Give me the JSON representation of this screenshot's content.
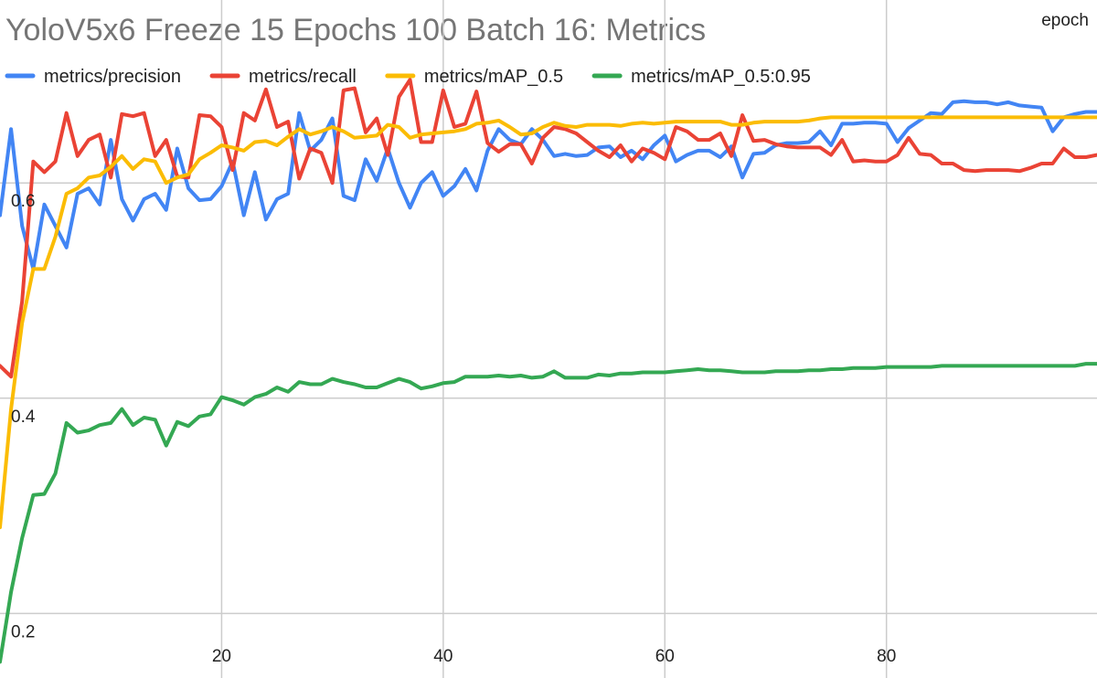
{
  "chart_data": {
    "type": "line",
    "title": "YoloV5x6 Freeze 15 Epochs 100 Batch 16: Metrics",
    "xlabel": "epoch",
    "ylabel": "",
    "xlim": [
      0,
      99
    ],
    "ylim": [
      0.14,
      0.77
    ],
    "xticks": [
      20,
      40,
      60,
      80
    ],
    "yticks": [
      0.2,
      0.4,
      0.6
    ],
    "grid": true,
    "legend_position": "top-left",
    "x": [
      0,
      1,
      2,
      3,
      4,
      5,
      6,
      7,
      8,
      9,
      10,
      11,
      12,
      13,
      14,
      15,
      16,
      17,
      18,
      19,
      20,
      21,
      22,
      23,
      24,
      25,
      26,
      27,
      28,
      29,
      30,
      31,
      32,
      33,
      34,
      35,
      36,
      37,
      38,
      39,
      40,
      41,
      42,
      43,
      44,
      45,
      46,
      47,
      48,
      49,
      50,
      51,
      52,
      53,
      54,
      55,
      56,
      57,
      58,
      59,
      60,
      61,
      62,
      63,
      64,
      65,
      66,
      67,
      68,
      69,
      70,
      71,
      72,
      73,
      74,
      75,
      76,
      77,
      78,
      79,
      80,
      81,
      82,
      83,
      84,
      85,
      86,
      87,
      88,
      89,
      90,
      91,
      92,
      93,
      94,
      95,
      96,
      97,
      98,
      99
    ],
    "series": [
      {
        "name": "metrics/precision",
        "color": "#4285f4",
        "values": [
          0.57,
          0.65,
          0.56,
          0.52,
          0.58,
          0.56,
          0.54,
          0.59,
          0.595,
          0.58,
          0.64,
          0.585,
          0.565,
          0.585,
          0.59,
          0.575,
          0.632,
          0.595,
          0.584,
          0.585,
          0.597,
          0.62,
          0.57,
          0.61,
          0.566,
          0.585,
          0.59,
          0.665,
          0.63,
          0.64,
          0.66,
          0.588,
          0.584,
          0.622,
          0.602,
          0.632,
          0.6,
          0.577,
          0.6,
          0.61,
          0.588,
          0.597,
          0.613,
          0.593,
          0.63,
          0.65,
          0.64,
          0.636,
          0.65,
          0.64,
          0.625,
          0.627,
          0.625,
          0.626,
          0.633,
          0.634,
          0.624,
          0.63,
          0.622,
          0.635,
          0.644,
          0.62,
          0.626,
          0.63,
          0.63,
          0.624,
          0.634,
          0.605,
          0.627,
          0.628,
          0.635,
          0.637,
          0.637,
          0.638,
          0.648,
          0.635,
          0.655,
          0.655,
          0.656,
          0.656,
          0.655,
          0.638,
          0.651,
          0.658,
          0.665,
          0.664,
          0.675,
          0.676,
          0.675,
          0.675,
          0.673,
          0.675,
          0.672,
          0.671,
          0.67,
          0.648,
          0.661,
          0.664,
          0.666,
          0.666
        ]
      },
      {
        "name": "metrics/recall",
        "color": "#ea4335",
        "values": [
          0.43,
          0.42,
          0.49,
          0.62,
          0.61,
          0.62,
          0.665,
          0.625,
          0.64,
          0.645,
          0.605,
          0.664,
          0.662,
          0.665,
          0.625,
          0.64,
          0.606,
          0.605,
          0.663,
          0.662,
          0.652,
          0.612,
          0.665,
          0.658,
          0.687,
          0.652,
          0.657,
          0.604,
          0.632,
          0.628,
          0.6,
          0.686,
          0.688,
          0.647,
          0.66,
          0.626,
          0.68,
          0.696,
          0.638,
          0.638,
          0.686,
          0.652,
          0.655,
          0.685,
          0.637,
          0.629,
          0.636,
          0.636,
          0.618,
          0.642,
          0.652,
          0.65,
          0.646,
          0.638,
          0.63,
          0.624,
          0.635,
          0.62,
          0.632,
          0.628,
          0.622,
          0.652,
          0.648,
          0.64,
          0.64,
          0.646,
          0.625,
          0.663,
          0.639,
          0.64,
          0.636,
          0.634,
          0.633,
          0.633,
          0.633,
          0.626,
          0.64,
          0.62,
          0.621,
          0.62,
          0.62,
          0.626,
          0.642,
          0.627,
          0.626,
          0.618,
          0.618,
          0.612,
          0.611,
          0.612,
          0.612,
          0.612,
          0.611,
          0.614,
          0.618,
          0.618,
          0.632,
          0.624,
          0.624,
          0.626
        ]
      },
      {
        "name": "metrics/mAP_0.5",
        "color": "#fbbc04",
        "values": [
          0.28,
          0.39,
          0.47,
          0.52,
          0.52,
          0.55,
          0.59,
          0.595,
          0.605,
          0.607,
          0.615,
          0.625,
          0.613,
          0.622,
          0.62,
          0.6,
          0.605,
          0.608,
          0.622,
          0.628,
          0.635,
          0.633,
          0.63,
          0.638,
          0.639,
          0.635,
          0.643,
          0.65,
          0.645,
          0.648,
          0.652,
          0.648,
          0.642,
          0.643,
          0.644,
          0.654,
          0.652,
          0.642,
          0.645,
          0.646,
          0.647,
          0.648,
          0.65,
          0.655,
          0.656,
          0.658,
          0.652,
          0.645,
          0.646,
          0.652,
          0.656,
          0.653,
          0.652,
          0.654,
          0.654,
          0.654,
          0.653,
          0.655,
          0.656,
          0.655,
          0.656,
          0.657,
          0.657,
          0.657,
          0.657,
          0.657,
          0.654,
          0.654,
          0.656,
          0.657,
          0.657,
          0.657,
          0.657,
          0.658,
          0.66,
          0.661,
          0.661,
          0.661,
          0.661,
          0.661,
          0.661,
          0.661,
          0.661,
          0.661,
          0.661,
          0.661,
          0.661,
          0.661,
          0.661,
          0.661,
          0.661,
          0.661,
          0.661,
          0.661,
          0.661,
          0.661,
          0.661,
          0.661,
          0.661,
          0.661
        ]
      },
      {
        "name": "metrics/mAP_0.5:0.95",
        "color": "#34a853",
        "values": [
          0.155,
          0.22,
          0.27,
          0.31,
          0.311,
          0.33,
          0.377,
          0.368,
          0.37,
          0.375,
          0.377,
          0.39,
          0.375,
          0.382,
          0.38,
          0.356,
          0.378,
          0.374,
          0.383,
          0.385,
          0.401,
          0.398,
          0.394,
          0.401,
          0.404,
          0.41,
          0.406,
          0.415,
          0.413,
          0.413,
          0.418,
          0.415,
          0.413,
          0.41,
          0.41,
          0.414,
          0.418,
          0.415,
          0.409,
          0.411,
          0.414,
          0.415,
          0.42,
          0.42,
          0.42,
          0.421,
          0.42,
          0.421,
          0.419,
          0.42,
          0.425,
          0.419,
          0.419,
          0.419,
          0.422,
          0.421,
          0.423,
          0.423,
          0.424,
          0.424,
          0.424,
          0.425,
          0.426,
          0.427,
          0.426,
          0.426,
          0.425,
          0.424,
          0.424,
          0.424,
          0.425,
          0.425,
          0.425,
          0.426,
          0.426,
          0.427,
          0.427,
          0.428,
          0.428,
          0.428,
          0.429,
          0.429,
          0.429,
          0.429,
          0.429,
          0.43,
          0.43,
          0.43,
          0.43,
          0.43,
          0.43,
          0.43,
          0.43,
          0.43,
          0.43,
          0.43,
          0.43,
          0.43,
          0.432,
          0.432
        ]
      }
    ]
  }
}
